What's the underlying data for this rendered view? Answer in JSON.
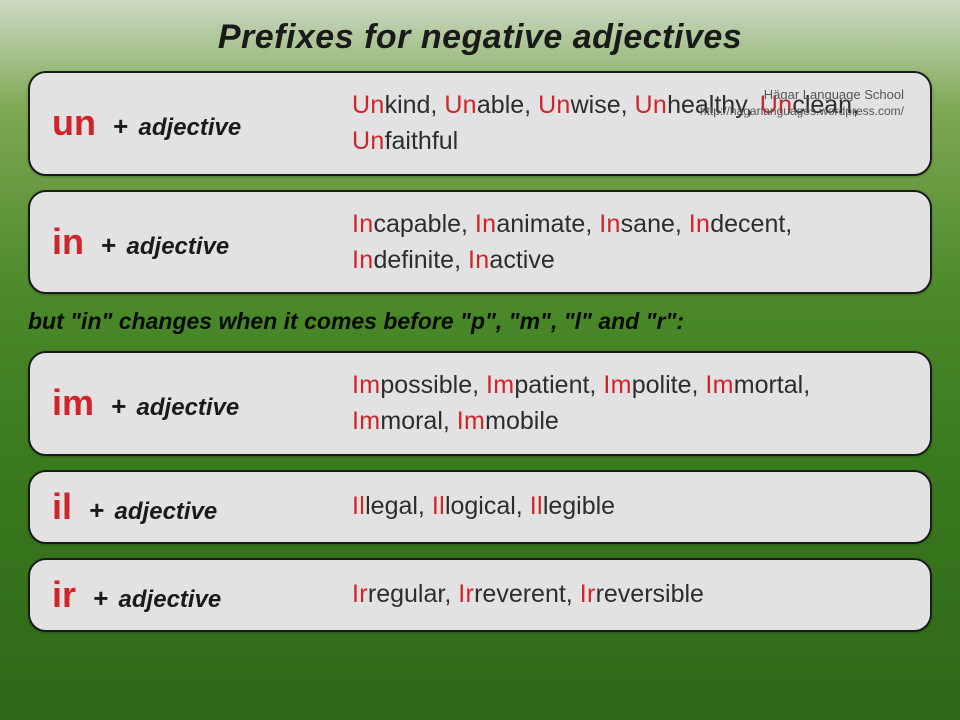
{
  "title": "Prefixes for negative adjectives",
  "adjective_label": "adjective",
  "plus": "+",
  "attribution": {
    "school": "Hägar Language School",
    "url": "http://hagarlanguages.wordpress.com/"
  },
  "note_parts": [
    "but \"in\" changes when it comes before \"p\", \"m\", \"l\" and \"r\":"
  ],
  "rows": [
    {
      "prefix": "un",
      "words": [
        "kind",
        "able",
        "wise",
        "healthy",
        "clean",
        "faithful"
      ],
      "pre": "Un"
    },
    {
      "prefix": "in",
      "words": [
        "capable",
        "animate",
        "sane",
        "decent",
        "definite",
        "active"
      ],
      "pre": "In"
    },
    {
      "prefix": "im",
      "words": [
        "possible",
        "patient",
        "polite",
        "mortal",
        "moral",
        "mobile"
      ],
      "pre": "Im"
    },
    {
      "prefix": "il",
      "words": [
        "legal",
        "logical",
        "legible"
      ],
      "pre": "Il"
    },
    {
      "prefix": "ir",
      "words": [
        "regular",
        "reverent",
        "reversible"
      ],
      "pre": "Ir"
    }
  ]
}
